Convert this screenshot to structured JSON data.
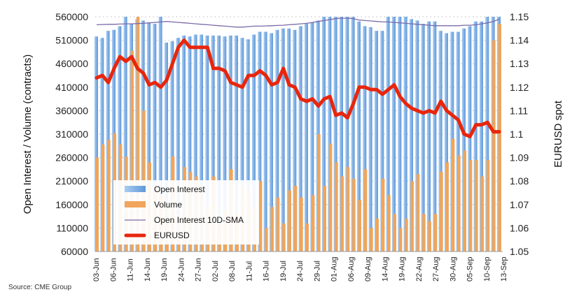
{
  "chart_data": {
    "type": "bar+line",
    "source": "Source: CME Group",
    "ylabel_left": "Open Interest / Volume (contracts)",
    "ylabel_right": "EURUSD spot",
    "ylim_left": [
      60000,
      560000
    ],
    "yticks_left": [
      "60000",
      "110000",
      "160000",
      "210000",
      "260000",
      "310000",
      "360000",
      "410000",
      "460000",
      "510000",
      "560000"
    ],
    "ylim_right": [
      1.05,
      1.15
    ],
    "yticks_right": [
      "1.05",
      "1.06",
      "1.07",
      "1.08",
      "1.09",
      "1.1",
      "1.11",
      "1.12",
      "1.13",
      "1.14",
      "1.15"
    ],
    "xtick_labels": [
      "03-Jun",
      "06-Jun",
      "11-Jun",
      "14-Jun",
      "19-Jun",
      "24-Jun",
      "27-Jun",
      "02-Jul",
      "08-Jul",
      "11-Jul",
      "16-Jul",
      "19-Jul",
      "24-Jul",
      "29-Jul",
      "01-Aug",
      "06-Aug",
      "09-Aug",
      "14-Aug",
      "19-Aug",
      "22-Aug",
      "27-Aug",
      "30-Aug",
      "05-Sep",
      "10-Sep",
      "13-Sep"
    ],
    "grid": "horizontal dotted",
    "legend_position": "bottom-left",
    "series": [
      {
        "name": "Open Interest",
        "type": "bar",
        "axis": "left",
        "color": "#7fb2e8",
        "values": [
          518000,
          515000,
          530000,
          532000,
          540000,
          565000,
          545000,
          555000,
          552000,
          548000,
          545000,
          565000,
          505000,
          508000,
          515000,
          520000,
          518000,
          522000,
          522000,
          520000,
          520000,
          520000,
          518000,
          520000,
          520000,
          515000,
          512000,
          522000,
          528000,
          528000,
          525000,
          532000,
          535000,
          535000,
          532000,
          540000,
          545000,
          548000,
          552000,
          565000,
          565000,
          565000,
          565000,
          565000,
          565000,
          550000,
          540000,
          538000,
          530000,
          530000,
          565000,
          565000,
          560000,
          560000,
          555000,
          552000,
          545000,
          550000,
          550000,
          530000,
          525000,
          528000,
          528000,
          535000,
          540000,
          550000,
          550000,
          565000,
          565000,
          565000
        ]
      },
      {
        "name": "Volume",
        "type": "bar",
        "axis": "left",
        "color": "#f0a55a",
        "values": [
          260000,
          288000,
          298000,
          312000,
          288000,
          262000,
          488000,
          565000,
          360000,
          250000,
          200000,
          180000,
          160000,
          262000,
          140000,
          240000,
          230000,
          220000,
          200000,
          160000,
          220000,
          120000,
          150000,
          235000,
          140000,
          200000,
          190000,
          150000,
          210000,
          110000,
          155000,
          175000,
          120000,
          190000,
          200000,
          175000,
          120000,
          180000,
          310000,
          200000,
          290000,
          250000,
          220000,
          240000,
          215000,
          170000,
          235000,
          110000,
          130000,
          215000,
          180000,
          140000,
          110000,
          130000,
          210000,
          225000,
          140000,
          125000,
          140000,
          230000,
          250000,
          300000,
          265000,
          275000,
          255000,
          255000,
          220000,
          255000,
          510000,
          545000
        ]
      },
      {
        "name": "Open Interest 10D-SMA",
        "type": "line",
        "axis": "left",
        "color": "#7a6aa8",
        "values": [
          543000,
          543500,
          544000,
          544000,
          544500,
          545000,
          545000,
          545500,
          546000,
          547000,
          548000,
          549000,
          550000,
          549000,
          548000,
          547000,
          546000,
          545000,
          544000,
          543000,
          542000,
          541000,
          540000,
          539000,
          538000,
          538000,
          539000,
          540000,
          540000,
          540500,
          541000,
          541500,
          542000,
          543000,
          544000,
          545000,
          546000,
          548000,
          550000,
          552000,
          554000,
          556000,
          557000,
          557000,
          556000,
          553000,
          552000,
          551000,
          550000,
          549000,
          549000,
          548000,
          547000,
          546000,
          545000,
          544000,
          543000,
          542000,
          541000,
          541000,
          541000,
          541000,
          541000,
          542000,
          542000,
          543000,
          545000,
          547000,
          550000,
          555000
        ]
      },
      {
        "name": "EURUSD",
        "type": "line",
        "axis": "right",
        "color": "#e8260c",
        "values": [
          1.124,
          1.125,
          1.122,
          1.128,
          1.133,
          1.131,
          1.133,
          1.128,
          1.126,
          1.121,
          1.122,
          1.12,
          1.123,
          1.13,
          1.137,
          1.14,
          1.137,
          1.137,
          1.137,
          1.137,
          1.128,
          1.128,
          1.127,
          1.122,
          1.121,
          1.12,
          1.125,
          1.125,
          1.127,
          1.125,
          1.121,
          1.122,
          1.128,
          1.121,
          1.12,
          1.115,
          1.114,
          1.115,
          1.112,
          1.115,
          1.116,
          1.108,
          1.109,
          1.107,
          1.113,
          1.12,
          1.12,
          1.119,
          1.119,
          1.117,
          1.119,
          1.121,
          1.116,
          1.113,
          1.111,
          1.11,
          1.109,
          1.11,
          1.109,
          1.114,
          1.11,
          1.108,
          1.106,
          1.1,
          1.099,
          1.104,
          1.104,
          1.105,
          1.101,
          1.101
        ]
      }
    ]
  }
}
